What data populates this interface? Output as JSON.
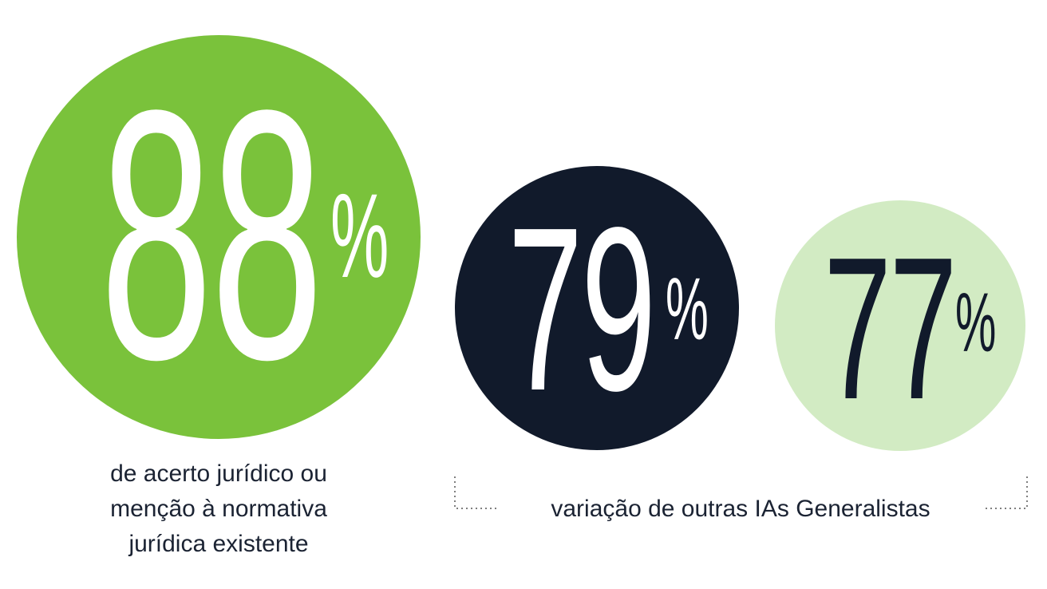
{
  "stats": [
    {
      "value": "88",
      "unit": "%",
      "color": "#7ac23b",
      "text_color": "#ffffff",
      "caption": [
        "de acerto jurídico ou",
        "menção à normativa",
        "jurídica existente"
      ]
    },
    {
      "value": "79",
      "unit": "%",
      "color": "#111a2b",
      "text_color": "#ffffff"
    },
    {
      "value": "77",
      "unit": "%",
      "color": "#d2ebc3",
      "text_color": "#111a2b"
    }
  ],
  "group_caption": "variação de outras IAs Generalistas"
}
